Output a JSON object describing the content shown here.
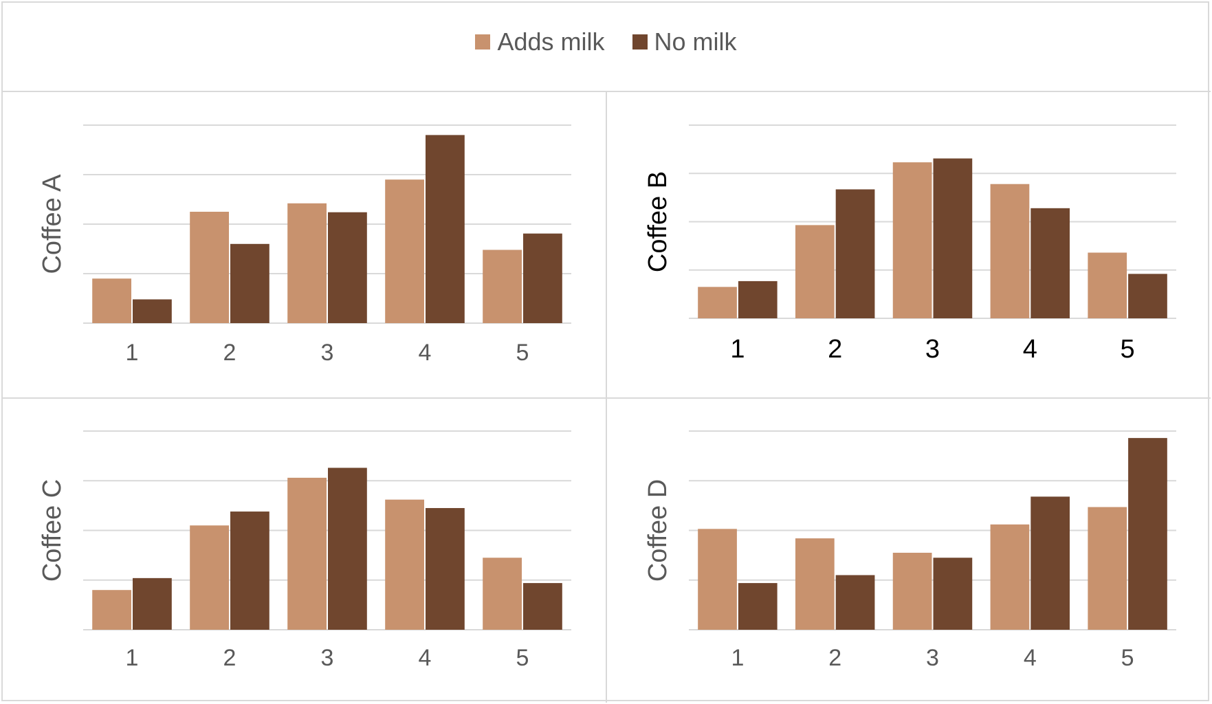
{
  "colors": {
    "adds_milk": "#c8926e",
    "no_milk": "#70462e",
    "grid": "#d9d9d9",
    "axis_text": "#595959",
    "axis_text_dark": "#000000"
  },
  "legend": {
    "items": [
      {
        "label": "Adds milk",
        "color": "#c8926e"
      },
      {
        "label": "No milk",
        "color": "#70462e"
      }
    ],
    "position": "top"
  },
  "chart_data": [
    {
      "type": "bar",
      "ylabel": "Coffee A",
      "xlabel": "",
      "categories": [
        "1",
        "2",
        "3",
        "4",
        "5"
      ],
      "ylim": [
        0,
        4
      ],
      "grid": true,
      "series": [
        {
          "name": "Adds milk",
          "values": [
            0.9,
            2.25,
            2.42,
            2.9,
            1.48
          ]
        },
        {
          "name": "No milk",
          "values": [
            0.48,
            1.6,
            2.24,
            3.8,
            1.81
          ]
        }
      ]
    },
    {
      "type": "bar",
      "ylabel": "Coffee B",
      "xlabel": "",
      "categories": [
        "1",
        "2",
        "3",
        "4",
        "5"
      ],
      "ylim": [
        0,
        4
      ],
      "grid": true,
      "series": [
        {
          "name": "Adds milk",
          "values": [
            0.65,
            1.93,
            3.23,
            2.78,
            1.36
          ]
        },
        {
          "name": "No milk",
          "values": [
            0.77,
            2.67,
            3.31,
            2.28,
            0.92
          ]
        }
      ]
    },
    {
      "type": "bar",
      "ylabel": "Coffee C",
      "xlabel": "",
      "categories": [
        "1",
        "2",
        "3",
        "4",
        "5"
      ],
      "ylim": [
        0,
        4
      ],
      "grid": true,
      "series": [
        {
          "name": "Adds milk",
          "values": [
            0.8,
            2.1,
            3.06,
            2.62,
            1.45
          ]
        },
        {
          "name": "No milk",
          "values": [
            1.04,
            2.38,
            3.26,
            2.45,
            0.94
          ]
        }
      ]
    },
    {
      "type": "bar",
      "ylabel": "Coffee D",
      "xlabel": "",
      "categories": [
        "1",
        "2",
        "3",
        "4",
        "5"
      ],
      "ylim": [
        0,
        4
      ],
      "grid": true,
      "series": [
        {
          "name": "Adds milk",
          "values": [
            2.03,
            1.84,
            1.55,
            2.12,
            2.47
          ]
        },
        {
          "name": "No milk",
          "values": [
            0.94,
            1.1,
            1.45,
            2.68,
            3.86
          ]
        }
      ]
    }
  ]
}
